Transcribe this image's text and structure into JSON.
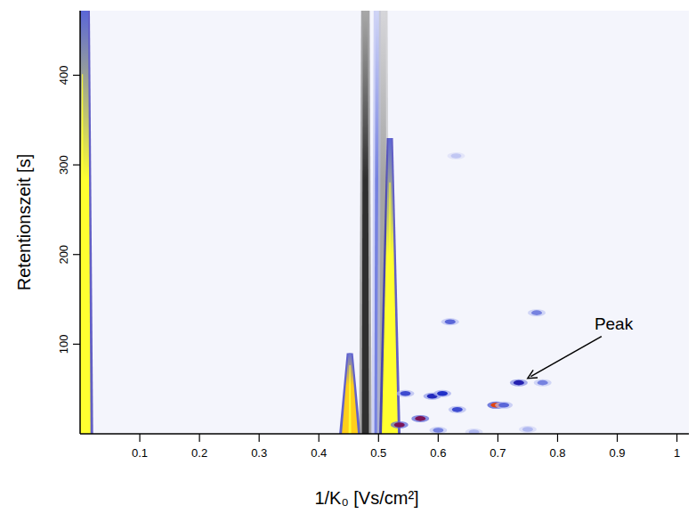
{
  "chart_data": {
    "type": "heatmap",
    "x_label": "1/K₀ [Vs/cm²]",
    "y_label": "Retentionszeit [s]",
    "xlim": [
      0,
      1.02
    ],
    "ylim": [
      0,
      472
    ],
    "xticks": [
      0.1,
      0.2,
      0.3,
      0.4,
      0.5,
      0.6,
      0.7,
      0.8,
      0.9,
      1
    ],
    "yticks": [
      100,
      200,
      300,
      400
    ],
    "intensity_range": [
      -1,
      1
    ],
    "streaks": [
      {
        "x": 0.004,
        "y0": 0,
        "y1": 472,
        "intensity": 1.0
      },
      {
        "x": 0.452,
        "y0": 0,
        "y1": 90,
        "intensity": 0.95
      },
      {
        "x": 0.478,
        "y0": 0,
        "y1": 472,
        "intensity": -0.8
      },
      {
        "x": 0.499,
        "y0": 0,
        "y1": 472,
        "intensity": 0.3
      },
      {
        "x": 0.508,
        "y0": 0,
        "y1": 472,
        "intensity": -0.3
      },
      {
        "x": 0.519,
        "y0": 0,
        "y1": 330,
        "intensity": 1.0
      }
    ],
    "spots": [
      {
        "x": 0.62,
        "y": 125,
        "intensity": 0.35
      },
      {
        "x": 0.765,
        "y": 135,
        "intensity": 0.3
      },
      {
        "x": 0.735,
        "y": 57,
        "intensity": 0.55
      },
      {
        "x": 0.775,
        "y": 57,
        "intensity": 0.3
      },
      {
        "x": 0.59,
        "y": 42,
        "intensity": 0.5
      },
      {
        "x": 0.607,
        "y": 45,
        "intensity": 0.45
      },
      {
        "x": 0.545,
        "y": 45,
        "intensity": 0.4
      },
      {
        "x": 0.697,
        "y": 32,
        "intensity": 0.8
      },
      {
        "x": 0.71,
        "y": 32,
        "intensity": 0.35
      },
      {
        "x": 0.632,
        "y": 27,
        "intensity": 0.4
      },
      {
        "x": 0.57,
        "y": 17,
        "intensity": 0.7
      },
      {
        "x": 0.535,
        "y": 10,
        "intensity": 0.7
      },
      {
        "x": 0.6,
        "y": 4,
        "intensity": 0.3
      },
      {
        "x": 0.75,
        "y": 5,
        "intensity": 0.2
      },
      {
        "x": 0.66,
        "y": 2,
        "intensity": 0.2
      },
      {
        "x": 0.63,
        "y": 310,
        "intensity": 0.15
      }
    ],
    "annotations": [
      {
        "text": "Peak",
        "x": 0.735,
        "y": 57
      }
    ]
  }
}
